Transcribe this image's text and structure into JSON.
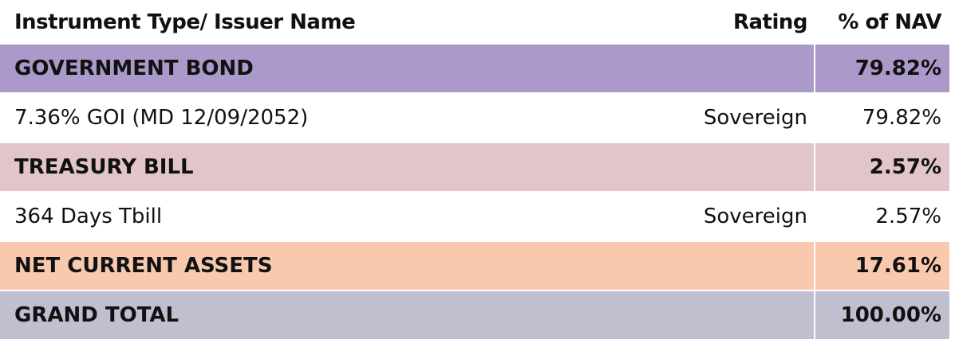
{
  "table": {
    "header": [
      "Instrument Type/ Issuer Name",
      "Rating",
      "% of NAV"
    ],
    "rows": [
      {
        "name": "GOVERNMENT BOND",
        "nav": "79.82%",
        "color": "#ab99ca"
      },
      {
        "name": "7.36% GOI (MD 12/09/2052)",
        "rating": "Sovereign",
        "nav": "79.82%"
      },
      {
        "name": "TREASURY BILL",
        "nav": "2.57%",
        "color": "#e2c5c9"
      },
      {
        "name": "364 Days Tbill",
        "rating": "Sovereign",
        "nav": "2.57%"
      },
      {
        "name": "NET CURRENT ASSETS",
        "nav": "17.61%",
        "color": "#f9c9ae"
      },
      {
        "name": "GRAND TOTAL",
        "nav": "100.00%",
        "color": "#c0bfcf"
      }
    ]
  }
}
